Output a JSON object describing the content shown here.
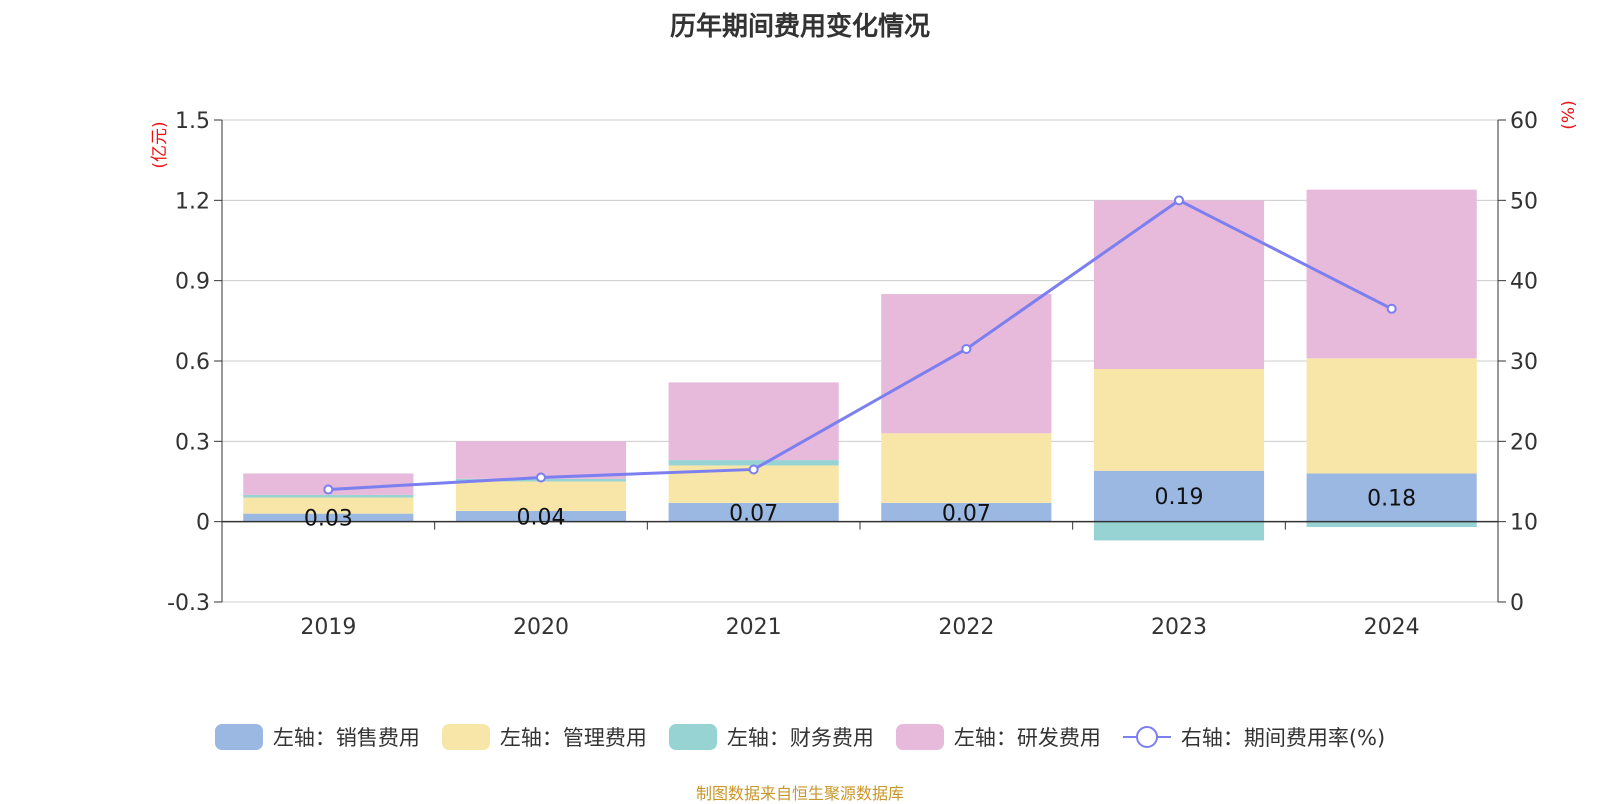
{
  "chart_data": {
    "type": "bar",
    "title": "历年期间费用变化情况",
    "categories": [
      "2019",
      "2020",
      "2021",
      "2022",
      "2023",
      "2024"
    ],
    "y_left": {
      "unit": "(亿元)",
      "min": -0.3,
      "max": 1.5,
      "ticks": [
        "-0.3",
        "0",
        "0.3",
        "0.6",
        "0.9",
        "1.2",
        "1.5"
      ]
    },
    "y_right": {
      "unit": "(%)",
      "min": 0,
      "max": 60,
      "ticks": [
        "0",
        "10",
        "20",
        "30",
        "40",
        "50",
        "60"
      ]
    },
    "series": [
      {
        "name": "左轴：销售费用",
        "axis": "left",
        "kind": "stacked-bar",
        "color": "#9bb8e2",
        "values": [
          0.03,
          0.04,
          0.07,
          0.07,
          0.19,
          0.18
        ],
        "labels": [
          "0.03",
          "0.04",
          "0.07",
          "0.07",
          "0.19",
          "0.18"
        ]
      },
      {
        "name": "左轴：管理费用",
        "axis": "left",
        "kind": "stacked-bar",
        "color": "#f8e6a8",
        "values": [
          0.06,
          0.11,
          0.14,
          0.26,
          0.38,
          0.43
        ]
      },
      {
        "name": "左轴：财务费用",
        "axis": "left",
        "kind": "stacked-bar",
        "color": "#98d3d4",
        "values": [
          0.01,
          0.01,
          0.02,
          0.0,
          -0.07,
          -0.02
        ]
      },
      {
        "name": "左轴：研发费用",
        "axis": "left",
        "kind": "stacked-bar",
        "color": "#e7b9da",
        "values": [
          0.08,
          0.14,
          0.29,
          0.52,
          0.63,
          0.63
        ]
      },
      {
        "name": "右轴：期间费用率(%)",
        "axis": "right",
        "kind": "line",
        "color": "#7b7ff0",
        "values": [
          14.0,
          15.5,
          16.5,
          31.5,
          50.0,
          36.5
        ]
      }
    ],
    "gridlines": true,
    "legend": "bottom"
  },
  "source_note": "制图数据来自恒生聚源数据库"
}
